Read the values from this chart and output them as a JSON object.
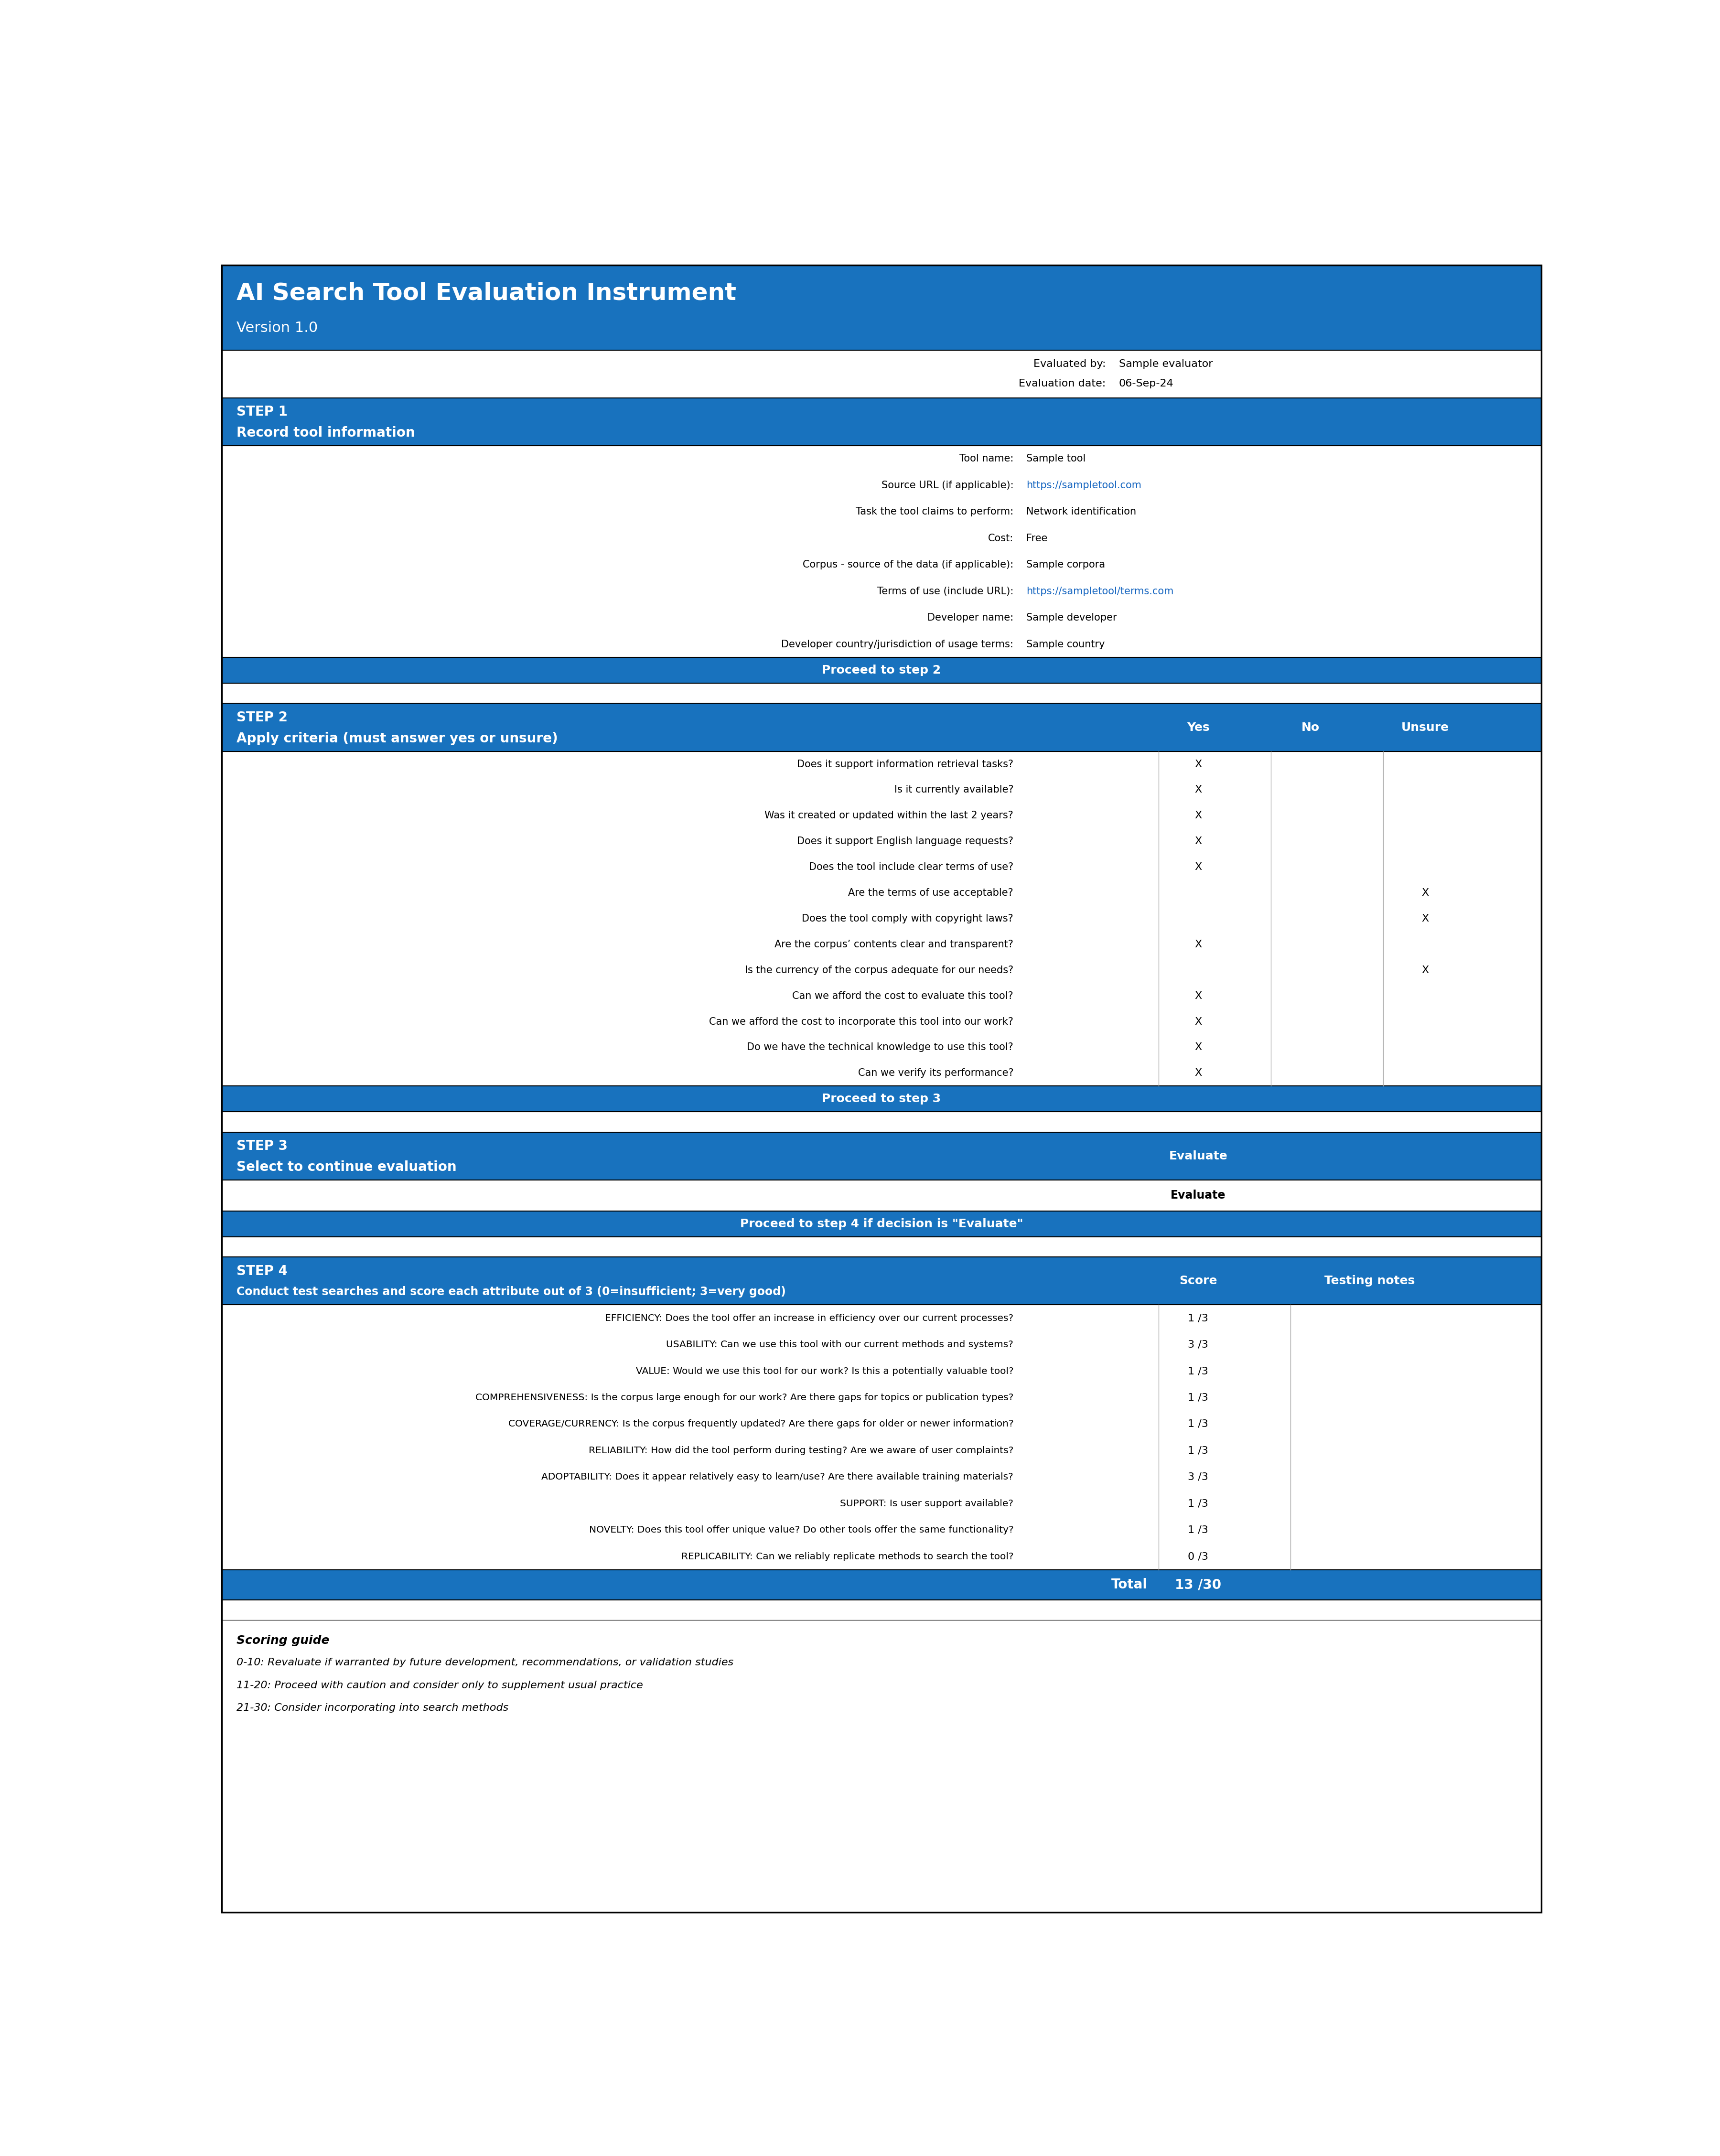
{
  "title": "AI Search Tool Evaluation Instrument",
  "version": "Version 1.0",
  "blue": "#1872BE",
  "white": "#FFFFFF",
  "black": "#000000",
  "link_color": "#1565C0",
  "evaluated_by_label": "Evaluated by:",
  "evaluated_by_value": "Sample evaluator",
  "evaluation_date_label": "Evaluation date:",
  "evaluation_date_value": "06-Sep-24",
  "step1_title": "STEP 1",
  "step1_subtitle": "Record tool information",
  "step1_fields": [
    {
      "label": "Tool name:",
      "value": "Sample tool",
      "link": false
    },
    {
      "label": "Source URL (if applicable):",
      "value": "https://sampletool.com",
      "link": true
    },
    {
      "label": "Task the tool claims to perform:",
      "value": "Network identification",
      "link": false
    },
    {
      "label": "Cost:",
      "value": "Free",
      "link": false
    },
    {
      "label": "Corpus - source of the data (if applicable):",
      "value": "Sample corpora",
      "link": false
    },
    {
      "label": "Terms of use (include URL):",
      "value": "https://sampletool/terms.com",
      "link": true
    },
    {
      "label": "Developer name:",
      "value": "Sample developer",
      "link": false
    },
    {
      "label": "Developer country/jurisdiction of usage terms:",
      "value": "Sample country",
      "link": false
    }
  ],
  "proceed_to_step2": "Proceed to step 2",
  "step2_title": "STEP 2",
  "step2_subtitle": "Apply criteria (must answer yes or unsure)",
  "step2_col_yes": "Yes",
  "step2_col_no": "No",
  "step2_col_unsure": "Unsure",
  "step2_criteria": [
    {
      "text": "Does it support information retrieval tasks?",
      "yes": true,
      "no": false,
      "unsure": false
    },
    {
      "text": "Is it currently available?",
      "yes": true,
      "no": false,
      "unsure": false
    },
    {
      "text": "Was it created or updated within the last 2 years?",
      "yes": true,
      "no": false,
      "unsure": false
    },
    {
      "text": "Does it support English language requests?",
      "yes": true,
      "no": false,
      "unsure": false
    },
    {
      "text": "Does the tool include clear terms of use?",
      "yes": true,
      "no": false,
      "unsure": false
    },
    {
      "text": "Are the terms of use acceptable?",
      "yes": false,
      "no": false,
      "unsure": true
    },
    {
      "text": "Does the tool comply with copyright laws?",
      "yes": false,
      "no": false,
      "unsure": true
    },
    {
      "text": "Are the corpus’ contents clear and transparent?",
      "yes": true,
      "no": false,
      "unsure": false
    },
    {
      "text": "Is the currency of the corpus adequate for our needs?",
      "yes": false,
      "no": false,
      "unsure": true
    },
    {
      "text": "Can we afford the cost to evaluate this tool?",
      "yes": true,
      "no": false,
      "unsure": false
    },
    {
      "text": "Can we afford the cost to incorporate this tool into our work?",
      "yes": true,
      "no": false,
      "unsure": false
    },
    {
      "text": "Do we have the technical knowledge to use this tool?",
      "yes": true,
      "no": false,
      "unsure": false
    },
    {
      "text": "Can we verify its performance?",
      "yes": true,
      "no": false,
      "unsure": false
    }
  ],
  "proceed_to_step3": "Proceed to step 3",
  "step3_title": "STEP 3",
  "step3_subtitle": "Select to continue evaluation",
  "step3_decision_col": "Evaluate",
  "step3_decision_val": "Evaluate",
  "step3_proceed": "Proceed to step 4 if decision is \"Evaluate\"",
  "step4_title": "STEP 4",
  "step4_subtitle": "Conduct test searches and score each attribute out of 3 (0=insufficient; 3=very good)",
  "step4_col_score": "Score",
  "step4_col_notes": "Testing notes",
  "step4_attributes": [
    {
      "text": "EFFICIENCY: Does the tool offer an increase in efficiency over our current processes?",
      "score": "1 /3"
    },
    {
      "text": "USABILITY: Can we use this tool with our current methods and systems?",
      "score": "3 /3"
    },
    {
      "text": "VALUE: Would we use this tool for our work? Is this a potentially valuable tool?",
      "score": "1 /3"
    },
    {
      "text": "COMPREHENSIVENESS: Is the corpus large enough for our work? Are there gaps for topics or publication types?",
      "score": "1 /3"
    },
    {
      "text": "COVERAGE/CURRENCY: Is the corpus frequently updated? Are there gaps for older or newer information?",
      "score": "1 /3"
    },
    {
      "text": "RELIABILITY: How did the tool perform during testing? Are we aware of user complaints?",
      "score": "1 /3"
    },
    {
      "text": "ADOPTABILITY: Does it appear relatively easy to learn/use? Are there available training materials?",
      "score": "3 /3"
    },
    {
      "text": "SUPPORT: Is user support available?",
      "score": "1 /3"
    },
    {
      "text": "NOVELTY: Does this tool offer unique value? Do other tools offer the same functionality?",
      "score": "1 /3"
    },
    {
      "text": "REPLICABILITY: Can we reliably replicate methods to search the tool?",
      "score": "0 /3"
    }
  ],
  "step4_total_label": "Total",
  "step4_total_value": "13 /30",
  "scoring_guide_title": "Scoring guide",
  "scoring_guide_lines": [
    "0-10: Revaluate if warranted by future development, recommendations, or validation studies",
    "11-20: Proceed with caution and consider only to supplement usual practice",
    "21-30: Consider incorporating into search methods"
  ]
}
